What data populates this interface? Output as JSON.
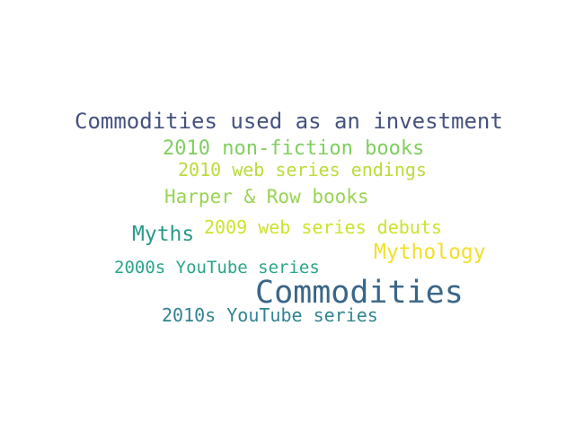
{
  "words": [
    {
      "text": "Commodities used as an investment",
      "color": "#46527f"
    },
    {
      "text": "2010 non-fiction books",
      "color": "#7fcf5e"
    },
    {
      "text": "2010 web series endings",
      "color": "#b9dc3a"
    },
    {
      "text": "Harper & Row books",
      "color": "#98d454"
    },
    {
      "text": "2009 web series debuts",
      "color": "#cde22d"
    },
    {
      "text": "Myths",
      "color": "#2a9a89"
    },
    {
      "text": "Mythology",
      "color": "#f1e02a"
    },
    {
      "text": "2000s YouTube series",
      "color": "#2aa58c"
    },
    {
      "text": "Commodities",
      "color": "#3a6688"
    },
    {
      "text": "2010s YouTube series",
      "color": "#31848f"
    }
  ]
}
